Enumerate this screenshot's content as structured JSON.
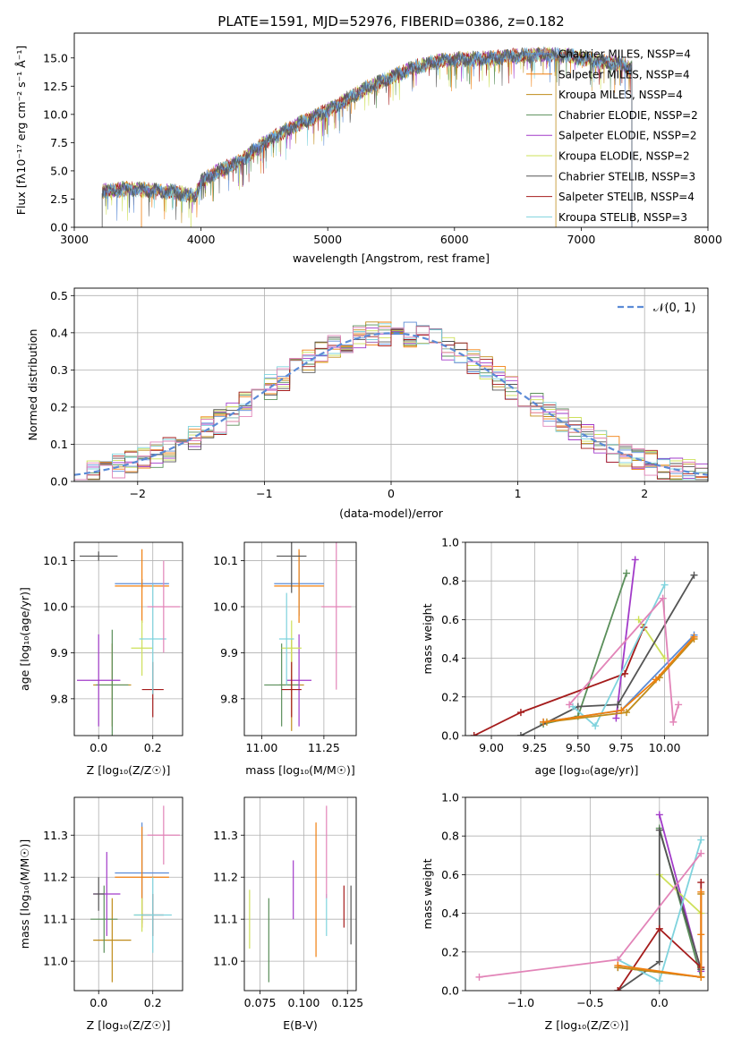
{
  "title": "PLATE=1591, MJD=52976, FIBERID=0386, z=0.182",
  "colors": [
    "#5b8bd6",
    "#f07f0e",
    "#bf8c1a",
    "#5a8f5a",
    "#a23bc9",
    "#cde05a",
    "#555555",
    "#a51c1c",
    "#7fd3dd",
    "#e284b8"
  ],
  "chart_data": [
    {
      "id": "spectrum",
      "type": "line",
      "title": "PLATE=1591, MJD=52976, FIBERID=0386, z=0.182",
      "xlabel": "wavelength [Angstrom, rest frame]",
      "ylabel": "Flux [fλ10⁻¹⁷ erg cm⁻² s⁻¹ Å⁻¹]",
      "xlim": [
        3000,
        8000
      ],
      "ylim": [
        0,
        17.2
      ],
      "xticks": [
        "3000",
        "4000",
        "5000",
        "6000",
        "7000",
        "8000"
      ],
      "yticks": [
        "0.0",
        "2.5",
        "5.0",
        "7.5",
        "10.0",
        "12.5",
        "15.0"
      ],
      "data_range": [
        3220,
        7400
      ],
      "legend_loc": "right",
      "legend": [
        "Chabrier MILES, NSSP=4",
        "Salpeter MILES, NSSP=4",
        "Kroupa MILES, NSSP=4",
        "Chabrier ELODIE, NSSP=2",
        "Salpeter ELODIE, NSSP=2",
        "Kroupa ELODIE, NSSP=2",
        "Chabrier STELIB, NSSP=3",
        "Salpeter STELIB, NSSP=4",
        "Kroupa STELIB, NSSP=3"
      ],
      "continuum": [
        [
          3220,
          3.2
        ],
        [
          3400,
          3.4
        ],
        [
          3600,
          3.3
        ],
        [
          3800,
          3.1
        ],
        [
          3950,
          2.7
        ],
        [
          4000,
          4.0
        ],
        [
          4100,
          4.8
        ],
        [
          4300,
          5.8
        ],
        [
          4500,
          7.5
        ],
        [
          4700,
          8.8
        ],
        [
          4900,
          9.8
        ],
        [
          5100,
          11.0
        ],
        [
          5300,
          12.3
        ],
        [
          5500,
          13.3
        ],
        [
          5700,
          14.2
        ],
        [
          5900,
          14.8
        ],
        [
          6100,
          14.9
        ],
        [
          6300,
          15.0
        ],
        [
          6500,
          15.2
        ],
        [
          6700,
          15.3
        ],
        [
          6900,
          15.2
        ],
        [
          7100,
          14.8
        ],
        [
          7300,
          14.5
        ],
        [
          7400,
          14.1
        ]
      ]
    },
    {
      "id": "residuals",
      "type": "bar",
      "xlabel": "(data-model)/error",
      "ylabel": "Normed distribution",
      "xlim": [
        -2.5,
        2.5
      ],
      "ylim": [
        0,
        0.52
      ],
      "xticks": [
        "−2",
        "−1",
        "0",
        "1",
        "2"
      ],
      "yticks": [
        "0.0",
        "0.1",
        "0.2",
        "0.3",
        "0.4",
        "0.5"
      ],
      "legend": [
        "𝒩(0, 1)"
      ],
      "legend_loc": "upper right",
      "bin_width": 0.1
    },
    {
      "id": "age_vs_Z",
      "type": "scatter",
      "xlabel": "Z [log₁₀(Z/Z☉)]",
      "ylabel": "age  [log₁₀(age/yr)]",
      "xlim": [
        -0.09,
        0.31
      ],
      "ylim": [
        9.72,
        10.14
      ],
      "xticks": [
        0.0,
        0.2
      ],
      "yticks": [
        9.8,
        9.9,
        10.0,
        10.1
      ],
      "points": [
        {
          "x": 0.16,
          "y": 10.05,
          "xerr": 0.1,
          "yerr": 0.01
        },
        {
          "x": 0.16,
          "y": 10.045,
          "xerr": 0.1,
          "yerr": 0.08
        },
        {
          "x": 0.05,
          "y": 9.83,
          "xerr": 0.07,
          "yerr": 0.09
        },
        {
          "x": 0.05,
          "y": 9.83,
          "xerr": 0.06,
          "yerr": 0.12
        },
        {
          "x": 0.0,
          "y": 9.84,
          "xerr": 0.08,
          "yerr": 0.1
        },
        {
          "x": 0.16,
          "y": 9.91,
          "xerr": 0.04,
          "yerr": 0.06
        },
        {
          "x": 0.0,
          "y": 10.11,
          "xerr": 0.07,
          "yerr": 0.01
        },
        {
          "x": 0.2,
          "y": 9.82,
          "xerr": 0.04,
          "yerr": 0.06
        },
        {
          "x": 0.2,
          "y": 9.93,
          "xerr": 0.05,
          "yerr": 0.12
        },
        {
          "x": 0.24,
          "y": 10.0,
          "xerr": 0.06,
          "yerr": 0.1
        }
      ]
    },
    {
      "id": "age_vs_mass",
      "type": "scatter",
      "xlabel": "mass [log₁₀(M/M☉)]",
      "ylabel": "",
      "xlim": [
        10.93,
        11.38
      ],
      "ylim": [
        9.72,
        10.14
      ],
      "xticks": [
        11.0,
        11.25
      ],
      "yticks": [
        9.8,
        9.9,
        10.0,
        10.1
      ],
      "points": [
        {
          "x": 11.15,
          "y": 10.05,
          "xerr": 0.1,
          "yerr": 0.07
        },
        {
          "x": 11.15,
          "y": 10.045,
          "xerr": 0.1,
          "yerr": 0.08
        },
        {
          "x": 11.12,
          "y": 9.83,
          "xerr": 0.05,
          "yerr": 0.1
        },
        {
          "x": 11.08,
          "y": 9.83,
          "xerr": 0.07,
          "yerr": 0.09
        },
        {
          "x": 11.15,
          "y": 9.84,
          "xerr": 0.05,
          "yerr": 0.1
        },
        {
          "x": 11.12,
          "y": 9.91,
          "xerr": 0.04,
          "yerr": 0.06
        },
        {
          "x": 11.12,
          "y": 10.11,
          "xerr": 0.06,
          "yerr": 0.08
        },
        {
          "x": 11.12,
          "y": 9.82,
          "xerr": 0.04,
          "yerr": 0.06
        },
        {
          "x": 11.1,
          "y": 9.93,
          "xerr": 0.03,
          "yerr": 0.1
        },
        {
          "x": 11.3,
          "y": 10.0,
          "xerr": 0.06,
          "yerr": 0.18
        }
      ]
    },
    {
      "id": "weight_vs_age",
      "type": "line",
      "xlabel": "age  [log₁₀(age/yr)]",
      "ylabel": "mass weight",
      "xlim": [
        8.85,
        10.25
      ],
      "ylim": [
        0,
        1.0
      ],
      "xticks": [
        9.0,
        9.25,
        9.5,
        9.75,
        10.0
      ],
      "yticks": [
        0.0,
        0.2,
        0.4,
        0.6,
        0.8,
        1.0
      ],
      "series": [
        {
          "points": [
            [
              9.3,
              0.07
            ],
            [
              9.75,
              0.13
            ],
            [
              10.17,
              0.52
            ]
          ]
        },
        {
          "points": [
            [
              9.3,
              0.07
            ],
            [
              9.75,
              0.13
            ],
            [
              9.95,
              0.29
            ],
            [
              10.17,
              0.51
            ]
          ]
        },
        {
          "points": [
            [
              9.32,
              0.07
            ],
            [
              9.78,
              0.12
            ],
            [
              9.97,
              0.3
            ],
            [
              10.17,
              0.5
            ]
          ]
        },
        {
          "points": [
            [
              9.3,
              0.06
            ],
            [
              9.5,
              0.1
            ],
            [
              9.78,
              0.84
            ]
          ]
        },
        {
          "points": [
            [
              9.72,
              0.09
            ],
            [
              9.83,
              0.91
            ]
          ]
        },
        {
          "points": [
            [
              9.85,
              0.6
            ],
            [
              10.0,
              0.4
            ]
          ]
        },
        {
          "points": [
            [
              9.17,
              0.0
            ],
            [
              9.5,
              0.15
            ],
            [
              9.73,
              0.16
            ],
            [
              10.17,
              0.83
            ]
          ]
        },
        {
          "points": [
            [
              8.9,
              0.0
            ],
            [
              9.17,
              0.12
            ],
            [
              9.77,
              0.32
            ],
            [
              9.88,
              0.56
            ]
          ]
        },
        {
          "points": [
            [
              9.47,
              0.15
            ],
            [
              9.6,
              0.05
            ],
            [
              10.0,
              0.78
            ]
          ]
        },
        {
          "points": [
            [
              9.45,
              0.16
            ],
            [
              9.99,
              0.71
            ],
            [
              10.05,
              0.07
            ],
            [
              10.08,
              0.16
            ]
          ]
        }
      ]
    },
    {
      "id": "mass_vs_Z",
      "type": "scatter",
      "xlabel": "Z [log₁₀(Z/Z☉)]",
      "ylabel": "mass [log₁₀(M/M☉)]",
      "xlim": [
        -0.09,
        0.31
      ],
      "ylim": [
        10.93,
        11.39
      ],
      "xticks": [
        0.0,
        0.2
      ],
      "yticks": [
        11.0,
        11.1,
        11.2,
        11.3
      ],
      "points": [
        {
          "x": 0.16,
          "y": 11.21,
          "xerr": 0.1,
          "yerr": 0.12
        },
        {
          "x": 0.16,
          "y": 11.2,
          "xerr": 0.1,
          "yerr": 0.12
        },
        {
          "x": 0.05,
          "y": 11.05,
          "xerr": 0.07,
          "yerr": 0.1
        },
        {
          "x": 0.02,
          "y": 11.1,
          "xerr": 0.05,
          "yerr": 0.08
        },
        {
          "x": 0.03,
          "y": 11.16,
          "xerr": 0.05,
          "yerr": 0.1
        },
        {
          "x": 0.16,
          "y": 11.11,
          "xerr": 0.03,
          "yerr": 0.04
        },
        {
          "x": 0.0,
          "y": 11.16,
          "xerr": 0.02,
          "yerr": 0.04
        },
        {
          "x": 0.2,
          "y": 11.11,
          "xerr": 0.04,
          "yerr": 0.05
        },
        {
          "x": 0.2,
          "y": 11.11,
          "xerr": 0.07,
          "yerr": 0.09
        },
        {
          "x": 0.24,
          "y": 11.3,
          "xerr": 0.06,
          "yerr": 0.07
        }
      ]
    },
    {
      "id": "mass_vs_ebv",
      "type": "scatter",
      "xlabel": "E(B-V)",
      "ylabel": "",
      "xlim": [
        0.066,
        0.13
      ],
      "ylim": [
        10.93,
        11.39
      ],
      "xticks": [
        0.075,
        0.1,
        0.125
      ],
      "yticks": [
        11.0,
        11.1,
        11.2,
        11.3
      ],
      "points": [
        {
          "x": 0.069,
          "y": 11.1,
          "yerr": 0.07
        },
        {
          "x": 0.08,
          "y": 11.05,
          "yerr": 0.1
        },
        {
          "x": 0.094,
          "y": 11.17,
          "yerr": 0.07
        },
        {
          "x": 0.107,
          "y": 11.17,
          "yerr": 0.16
        },
        {
          "x": 0.113,
          "y": 11.11,
          "yerr": 0.05
        },
        {
          "x": 0.113,
          "y": 11.26,
          "yerr": 0.11
        },
        {
          "x": 0.123,
          "y": 11.13,
          "yerr": 0.05
        },
        {
          "x": 0.127,
          "y": 11.11,
          "yerr": 0.07
        }
      ]
    },
    {
      "id": "weight_vs_Z",
      "type": "line",
      "xlabel": "Z [log₁₀(Z/Z☉)]",
      "ylabel": "mass weight",
      "xlim": [
        -1.4,
        0.35
      ],
      "ylim": [
        0,
        1.0
      ],
      "xticks": [
        -1.0,
        -0.5,
        0.0
      ],
      "yticks": [
        0.0,
        0.2,
        0.4,
        0.6,
        0.8,
        1.0
      ],
      "series": [
        {
          "points": [
            [
              -0.3,
              0.12
            ],
            [
              0.3,
              0.07
            ]
          ]
        },
        {
          "points": [
            [
              -0.3,
              0.13
            ],
            [
              0.3,
              0.07
            ],
            [
              0.3,
              0.29
            ],
            [
              0.3,
              0.51
            ]
          ]
        },
        {
          "points": [
            [
              -0.3,
              0.12
            ],
            [
              0.3,
              0.07
            ],
            [
              0.3,
              0.5
            ]
          ]
        },
        {
          "points": [
            [
              0.0,
              0.84
            ],
            [
              0.3,
              0.07
            ]
          ]
        },
        {
          "points": [
            [
              0.0,
              0.91
            ],
            [
              0.3,
              0.1
            ]
          ]
        },
        {
          "points": [
            [
              0.0,
              0.6
            ],
            [
              0.3,
              0.4
            ]
          ]
        },
        {
          "points": [
            [
              -0.3,
              0.0
            ],
            [
              0.0,
              0.15
            ],
            [
              0.0,
              0.83
            ],
            [
              0.3,
              0.11
            ]
          ]
        },
        {
          "points": [
            [
              -0.3,
              0.0
            ],
            [
              0.0,
              0.32
            ],
            [
              0.3,
              0.12
            ],
            [
              0.3,
              0.56
            ]
          ]
        },
        {
          "points": [
            [
              -0.3,
              0.16
            ],
            [
              0.0,
              0.05
            ],
            [
              0.3,
              0.78
            ]
          ]
        },
        {
          "points": [
            [
              -1.3,
              0.07
            ],
            [
              -0.3,
              0.16
            ],
            [
              0.3,
              0.71
            ]
          ]
        }
      ]
    }
  ]
}
